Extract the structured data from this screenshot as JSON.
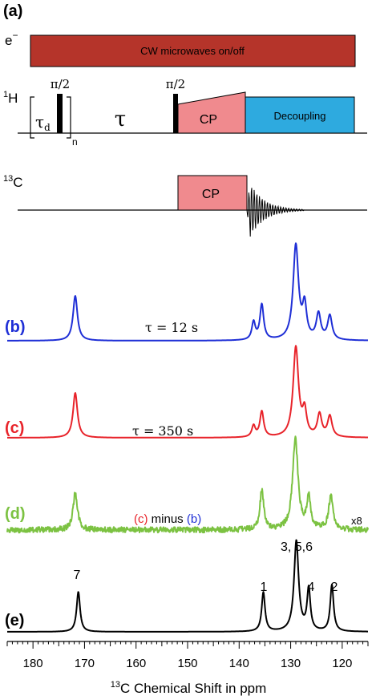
{
  "panel_a": {
    "label": "(a)",
    "electron_channel": "e",
    "electron_superscript": "−",
    "microwave_block": "CW microwaves on/off",
    "proton_channel_sup": "1",
    "proton_channel": "H",
    "pulse_1": "π/2",
    "pulse_2": "π/2",
    "tau_d": "τ",
    "tau_d_sub": "d",
    "loop_index": "n",
    "tau": "τ",
    "cp_label_1h": "CP",
    "decoupling_label": "Decoupling",
    "carbon_channel_sup": "13",
    "carbon_channel": "C",
    "cp_label_13c": "CP",
    "colors": {
      "microwave": "#b5342a",
      "cp": "#f08a8e",
      "decoupling": "#2eaadf"
    }
  },
  "spectra": [
    {
      "label": "(b)",
      "color": "#1f2fd6",
      "note": "τ = 12 s"
    },
    {
      "label": "(c)",
      "color": "#e8232a",
      "note": "τ = 350 s"
    },
    {
      "label": "(d)",
      "color": "#7cc242",
      "note_c": "(c)",
      "note_minus": "minus",
      "note_b": "(b)",
      "scale": "x8"
    },
    {
      "label": "(e)",
      "color": "#000000",
      "peaks": [
        "7",
        "1",
        "3, 5,6",
        "4",
        "2"
      ]
    }
  ],
  "chart_data": {
    "type": "line",
    "xlabel_sup": "13",
    "xlabel": "C Chemical Shift in ppm",
    "xlim": [
      185,
      115
    ],
    "xticks": [
      180,
      170,
      160,
      150,
      140,
      130,
      120
    ],
    "peaks_ppm": [
      {
        "label": "7",
        "ppm": 171.2
      },
      {
        "label": "1",
        "ppm": 135.3
      },
      {
        "label": "3, 5,6",
        "ppm": 128.9
      },
      {
        "label": "4",
        "ppm": 126.5
      },
      {
        "label": "2",
        "ppm": 122.0
      }
    ]
  }
}
